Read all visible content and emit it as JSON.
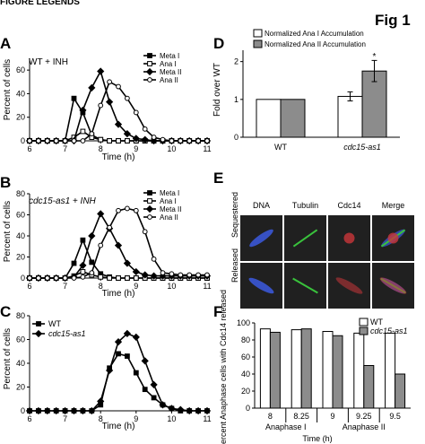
{
  "header": {
    "cropped_text": "FIGURE LEGENDS",
    "figure_label": "Fig 1"
  },
  "colors": {
    "line": "#000000",
    "open_bar": "#ffffff",
    "gray_bar": "#8c8c8c",
    "dna": "#3c5be0",
    "tubulin": "#39c23c",
    "cdc14": "#c9363a",
    "micro_bg": "#202020"
  },
  "panels": {
    "A": {
      "label": "A",
      "condition": "WT + INH"
    },
    "B": {
      "label": "B",
      "condition": "cdc15-as1 + INH"
    },
    "C": {
      "label": "C"
    },
    "D": {
      "label": "D"
    },
    "E": {
      "label": "E",
      "columns": [
        "DNA",
        "Tubulin",
        "Cdc14",
        "Merge"
      ],
      "row_labels": [
        "Sequestered",
        "Released"
      ]
    },
    "F": {
      "label": "F"
    }
  },
  "chart_data": [
    {
      "id": "A",
      "type": "line",
      "xlabel": "Time (h)",
      "ylabel": "Percent of cells",
      "xlim": [
        6,
        11
      ],
      "ylim": [
        0,
        70
      ],
      "xticks": [
        6,
        7,
        8,
        9,
        10,
        11
      ],
      "yticks": [
        0,
        20,
        40,
        60
      ],
      "legend_position": "top-right",
      "x": [
        6,
        6.25,
        6.5,
        6.75,
        7,
        7.25,
        7.5,
        7.75,
        8,
        8.25,
        8.5,
        8.75,
        9,
        9.25,
        9.5,
        9.75,
        10,
        10.25,
        10.5,
        10.75,
        11
      ],
      "series": [
        {
          "name": "Meta I",
          "marker": "square-filled",
          "values": [
            0,
            0,
            0,
            0,
            0,
            36,
            24,
            5,
            1,
            0,
            0,
            0,
            0,
            0,
            0,
            0,
            0,
            0,
            0,
            0,
            0
          ]
        },
        {
          "name": "Ana I",
          "marker": "square-open",
          "values": [
            0,
            0,
            0,
            0,
            0,
            3,
            8,
            3,
            1,
            0,
            0,
            0,
            0,
            0,
            0,
            0,
            0,
            0,
            0,
            0,
            0
          ]
        },
        {
          "name": "Meta II",
          "marker": "diamond-filled",
          "values": [
            0,
            0,
            0,
            0,
            0,
            0,
            26,
            45,
            59,
            33,
            14,
            6,
            2,
            1,
            0,
            0,
            0,
            0,
            0,
            0,
            0
          ]
        },
        {
          "name": "Ana II",
          "marker": "circle-open",
          "values": [
            0,
            0,
            0,
            0,
            0,
            0,
            0,
            6,
            30,
            50,
            46,
            36,
            24,
            10,
            3,
            1,
            0,
            0,
            0,
            0,
            0
          ]
        }
      ]
    },
    {
      "id": "B",
      "type": "line",
      "xlabel": "Time (h)",
      "ylabel": "Percent of cells",
      "xlim": [
        6,
        11
      ],
      "ylim": [
        0,
        80
      ],
      "xticks": [
        6,
        7,
        8,
        9,
        10,
        11
      ],
      "yticks": [
        0,
        20,
        40,
        60,
        80
      ],
      "legend_position": "top-right",
      "x": [
        6,
        6.25,
        6.5,
        6.75,
        7,
        7.25,
        7.5,
        7.75,
        8,
        8.25,
        8.5,
        8.75,
        9,
        9.25,
        9.5,
        9.75,
        10,
        10.25,
        10.5,
        10.75,
        11
      ],
      "series": [
        {
          "name": "Meta I",
          "marker": "square-filled",
          "values": [
            0,
            0,
            0,
            0,
            0,
            14,
            36,
            15,
            4,
            1,
            0,
            0,
            0,
            0,
            0,
            0,
            0,
            0,
            0,
            0,
            0
          ]
        },
        {
          "name": "Ana I",
          "marker": "square-open",
          "values": [
            0,
            0,
            0,
            0,
            0,
            2,
            6,
            3,
            1,
            0,
            0,
            0,
            0,
            0,
            0,
            0,
            0,
            0,
            0,
            0,
            0
          ]
        },
        {
          "name": "Meta II",
          "marker": "diamond-filled",
          "values": [
            0,
            0,
            0,
            0,
            0,
            1,
            12,
            40,
            61,
            47,
            31,
            14,
            6,
            3,
            2,
            2,
            2,
            2,
            2,
            2,
            2
          ]
        },
        {
          "name": "Ana II",
          "marker": "circle-open",
          "values": [
            0,
            0,
            0,
            0,
            0,
            0,
            1,
            5,
            31,
            48,
            64,
            66,
            64,
            44,
            18,
            5,
            4,
            3,
            3,
            3,
            3
          ]
        }
      ]
    },
    {
      "id": "C",
      "type": "line",
      "xlabel": "Time (h)",
      "ylabel": "Percent of cells",
      "xlim": [
        6,
        11
      ],
      "ylim": [
        0,
        80
      ],
      "xticks": [
        6,
        7,
        8,
        9,
        10,
        11
      ],
      "yticks": [
        0,
        20,
        40,
        60,
        80
      ],
      "legend_position": "top-left",
      "x": [
        6,
        6.25,
        6.5,
        6.75,
        7,
        7.25,
        7.5,
        7.75,
        8,
        8.25,
        8.5,
        8.75,
        9,
        9.25,
        9.5,
        9.75,
        10,
        10.25,
        10.5,
        10.75,
        11
      ],
      "series": [
        {
          "name": "WT",
          "marker": "square-filled",
          "values": [
            0,
            0,
            0,
            0,
            0,
            0,
            0,
            0,
            5,
            36,
            48,
            46,
            32,
            18,
            11,
            5,
            2,
            0,
            0,
            0,
            0
          ]
        },
        {
          "name": "cdc15-as1",
          "marker": "diamond-filled",
          "values": [
            0,
            0,
            0,
            0,
            0,
            0,
            0,
            0,
            8,
            34,
            58,
            65,
            62,
            42,
            22,
            5,
            2,
            1,
            0,
            0,
            0
          ]
        }
      ]
    },
    {
      "id": "D",
      "type": "bar",
      "ylabel": "Fold over WT",
      "ylim": [
        0,
        2.3
      ],
      "yticks": [
        0,
        1,
        2
      ],
      "categories": [
        "WT",
        "cdc15-as1"
      ],
      "series": [
        {
          "name": "Normalized Ana I Accumulation",
          "fill": "open",
          "values": [
            1,
            1.08
          ],
          "error": [
            0,
            0.12
          ]
        },
        {
          "name": "Normalized Ana II Accumulation",
          "fill": "gray",
          "values": [
            1,
            1.75
          ],
          "error": [
            0,
            0.28
          ]
        }
      ],
      "annotations": [
        {
          "text": "*",
          "category": "cdc15-as1",
          "series": "Normalized Ana II Accumulation"
        }
      ],
      "legend_position": "top"
    },
    {
      "id": "F",
      "type": "bar",
      "ylabel": "Percent Anaphase cells with Cdc14 released",
      "xlabel": "Time (h)",
      "ylim": [
        0,
        100
      ],
      "yticks": [
        0,
        20,
        40,
        60,
        80,
        100
      ],
      "categories": [
        "8",
        "8.25",
        "9",
        "9.25",
        "9.5"
      ],
      "groups": [
        {
          "label": "Anaphase I",
          "from": 0,
          "to": 1
        },
        {
          "label": "Anaphase II",
          "from": 2,
          "to": 4
        }
      ],
      "series": [
        {
          "name": "WT",
          "fill": "open",
          "values": [
            93,
            92,
            90,
            88,
            88
          ]
        },
        {
          "name": "cdc15-as1",
          "fill": "gray",
          "values": [
            89,
            93,
            85,
            50,
            40
          ]
        }
      ],
      "legend_position": "top-right"
    }
  ]
}
